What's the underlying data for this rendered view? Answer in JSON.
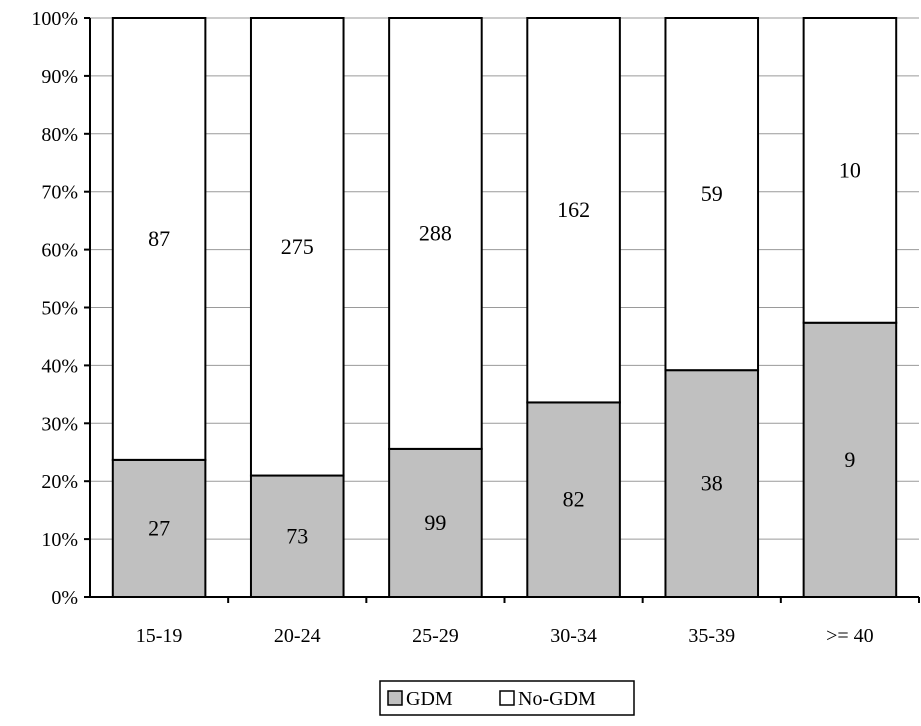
{
  "chart_data": {
    "type": "bar",
    "stacking": "percent",
    "categories": [
      "15-19",
      "20-24",
      "25-29",
      "30-34",
      "35-39",
      ">= 40"
    ],
    "series": [
      {
        "name": "GDM",
        "values": [
          27,
          73,
          99,
          82,
          38,
          9
        ],
        "color": "#c0c0c0"
      },
      {
        "name": "No-GDM",
        "values": [
          87,
          275,
          288,
          162,
          59,
          10
        ],
        "color": "#ffffff"
      }
    ],
    "yaxis": {
      "ticks": [
        "0%",
        "10%",
        "20%",
        "30%",
        "40%",
        "50%",
        "60%",
        "70%",
        "80%",
        "90%",
        "100%"
      ],
      "ylim": [
        0,
        100
      ]
    },
    "grid": true,
    "legend": {
      "position": "bottom"
    }
  }
}
